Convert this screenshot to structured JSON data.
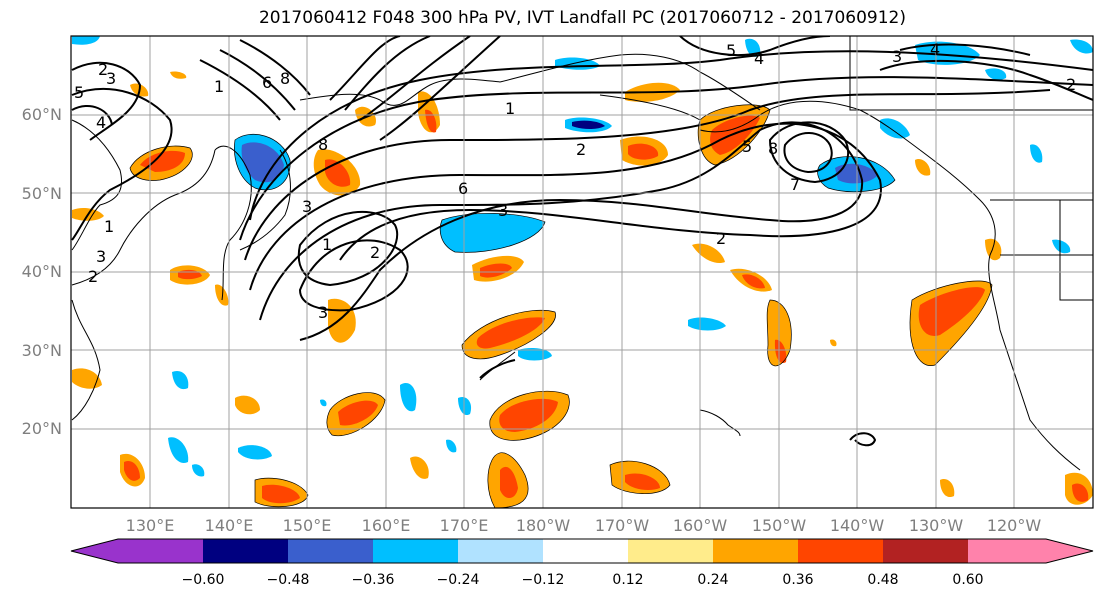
{
  "title": "2017060412 F048 300 hPa PV, IVT Landfall PC (2017060712 - 2017060912)",
  "map": {
    "lon_range": [
      120,
      245
    ],
    "lat_range": [
      10,
      70
    ],
    "lat_labels": [
      "20°N",
      "30°N",
      "40°N",
      "50°N",
      "60°N"
    ],
    "lon_labels": [
      "130°E",
      "140°E",
      "150°E",
      "160°E",
      "170°E",
      "180°W",
      "170°W",
      "160°W",
      "150°W",
      "140°W",
      "130°W",
      "120°W"
    ],
    "gridlines": true
  },
  "colorbar": {
    "orientation": "horizontal",
    "extend": "both",
    "ticks": [
      "−0.60",
      "−0.48",
      "−0.36",
      "−0.24",
      "−0.12",
      "0.12",
      "0.24",
      "0.36",
      "0.48",
      "0.60"
    ],
    "colors": [
      "#9933cc",
      "#000080",
      "#3a5fcd",
      "#00bfff",
      "#b0e2ff",
      "#ffffff",
      "#ffec8b",
      "#ffa500",
      "#ff4500",
      "#b22222",
      "#ff82ab"
    ]
  },
  "contour_labels": [
    "1",
    "2",
    "3",
    "4",
    "5",
    "6",
    "7",
    "8"
  ]
}
